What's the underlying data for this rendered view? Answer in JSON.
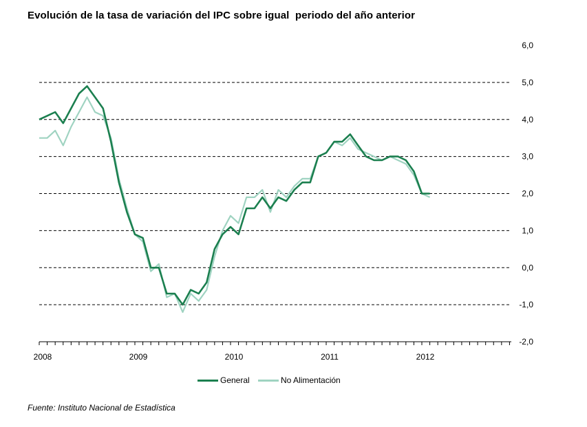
{
  "title": "Evolución de la tasa de variación del IPC sobre igual  periodo del año anterior",
  "source": "Fuente: Instituto Nacional de Estadística",
  "colors": {
    "general": "#1b7f4f",
    "no_alimentacion": "#9fd3c1",
    "grid": "#000000",
    "axis": "#000000"
  },
  "chart_data": {
    "type": "line",
    "title": "Evolución de la tasa de variación del IPC sobre igual  periodo del año anterior",
    "xlabel": "",
    "ylabel": "",
    "ylim": [
      -2.0,
      6.0
    ],
    "yticks": [
      "6,0",
      "5,0",
      "4,0",
      "3,0",
      "2,0",
      "1,0",
      "0,0",
      "-1,0",
      "-2,0"
    ],
    "ytick_values": [
      6,
      5,
      4,
      3,
      2,
      1,
      0,
      -1,
      -2
    ],
    "xticks": [
      "2008",
      "2009",
      "2010",
      "2011",
      "2012"
    ],
    "x_start": "2008-01",
    "x_end": "2012-12",
    "grid": "horizontal dashed",
    "y_axis_side": "right",
    "legend_position": "bottom-center",
    "series": [
      {
        "name": "General",
        "key": "general",
        "values": [
          4.0,
          4.1,
          4.2,
          3.9,
          4.3,
          4.7,
          4.9,
          4.6,
          4.3,
          3.4,
          2.3,
          1.5,
          0.9,
          0.8,
          0.0,
          0.0,
          -0.7,
          -0.7,
          -1.0,
          -0.6,
          -0.7,
          -0.4,
          0.5,
          0.9,
          1.1,
          0.9,
          1.6,
          1.6,
          1.9,
          1.6,
          1.9,
          1.8,
          2.1,
          2.3,
          2.3,
          3.0,
          3.1,
          3.4,
          3.4,
          3.6,
          3.3,
          3.0,
          2.9,
          2.9,
          3.0,
          3.0,
          2.9,
          2.6,
          2.0,
          2.0
        ]
      },
      {
        "name": "No Alimentación",
        "key": "no_alimentacion",
        "values": [
          3.5,
          3.5,
          3.7,
          3.3,
          3.8,
          4.2,
          4.6,
          4.2,
          4.1,
          3.5,
          2.4,
          1.6,
          0.9,
          0.7,
          -0.1,
          0.1,
          -0.8,
          -0.7,
          -1.2,
          -0.7,
          -0.9,
          -0.6,
          0.3,
          1.0,
          1.4,
          1.2,
          1.9,
          1.9,
          2.1,
          1.5,
          2.1,
          1.9,
          2.2,
          2.4,
          2.4,
          3.0,
          3.1,
          3.4,
          3.3,
          3.5,
          3.2,
          3.1,
          3.0,
          2.9,
          3.0,
          2.9,
          2.8,
          2.5,
          2.0,
          1.9
        ]
      }
    ]
  }
}
